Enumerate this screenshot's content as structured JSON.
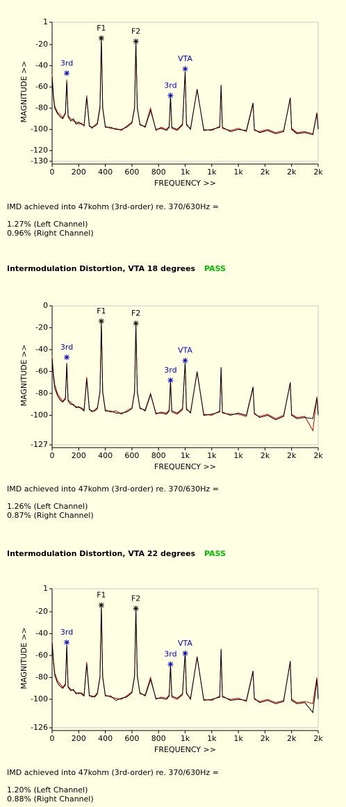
{
  "chart_data": [
    {
      "type": "line",
      "xlabel": "FREQUENCY >>",
      "ylabel": "MAGNITUDE >>",
      "xlim": [
        0,
        2000
      ],
      "ylim": [
        -130,
        1
      ],
      "xticks": [
        0,
        200,
        400,
        600,
        800,
        {
          "value": 1000,
          "label": "1k"
        },
        {
          "value": 1200,
          "label": "1k"
        },
        {
          "value": 1400,
          "label": "1k"
        },
        {
          "value": 1600,
          "label": "2k"
        },
        {
          "value": 1800,
          "label": "2k"
        },
        {
          "value": 2000,
          "label": "2k"
        }
      ],
      "yticks": [
        1,
        -20,
        -40,
        -60,
        -80,
        -100,
        -120,
        -130
      ],
      "x": [
        0,
        10,
        20,
        40,
        60,
        80,
        100,
        110,
        120,
        140,
        160,
        180,
        200,
        220,
        240,
        260,
        280,
        300,
        320,
        340,
        360,
        370,
        380,
        400,
        440,
        480,
        520,
        560,
        600,
        620,
        630,
        640,
        660,
        700,
        740,
        780,
        820,
        860,
        880,
        890,
        900,
        940,
        980,
        1000,
        1010,
        1040,
        1090,
        1140,
        1200,
        1260,
        1270,
        1280,
        1340,
        1400,
        1460,
        1510,
        1520,
        1560,
        1620,
        1680,
        1740,
        1790,
        1800,
        1840,
        1900,
        1960,
        1990,
        2000
      ],
      "series": [
        {
          "color": "#e00000",
          "values": [
            -48,
            -68,
            -78,
            -84,
            -86,
            -89,
            -84,
            -53,
            -87,
            -90,
            -92,
            -93,
            -95,
            -94,
            -97,
            -68,
            -96,
            -99,
            -96,
            -94,
            -78,
            -15,
            -79,
            -97,
            -99,
            -99,
            -101,
            -97,
            -93,
            -79,
            -18,
            -79,
            -96,
            -97,
            -80,
            -101,
            -98,
            -100,
            -97,
            -69,
            -99,
            -101,
            -96,
            -46,
            -96,
            -99,
            -63,
            -100,
            -101,
            -97,
            -59,
            -99,
            -101,
            -99,
            -102,
            -76,
            -101,
            -102,
            -100,
            -103,
            -101,
            -71,
            -99,
            -103,
            -102,
            -104,
            -84,
            -99
          ]
        },
        {
          "color": "#000000",
          "values": [
            -50,
            -70,
            -80,
            -85,
            -88,
            -90,
            -85,
            -55,
            -88,
            -92,
            -90,
            -95,
            -93,
            -95,
            -96,
            -70,
            -97,
            -98,
            -97,
            -95,
            -80,
            -14,
            -80,
            -98,
            -98,
            -100,
            -100,
            -98,
            -94,
            -80,
            -17,
            -80,
            -95,
            -98,
            -82,
            -100,
            -99,
            -101,
            -98,
            -68,
            -98,
            -100,
            -95,
            -45,
            -95,
            -100,
            -62,
            -101,
            -100,
            -98,
            -58,
            -98,
            -102,
            -100,
            -101,
            -75,
            -100,
            -103,
            -101,
            -104,
            -102,
            -70,
            -100,
            -104,
            -103,
            -105,
            -85,
            -100
          ]
        }
      ],
      "annotations": [
        {
          "label": "F1",
          "x": 370,
          "y": -14,
          "color": "#000000"
        },
        {
          "label": "F2",
          "x": 630,
          "y": -17,
          "color": "#000000"
        },
        {
          "label": "3rd",
          "x": 110,
          "y": -47,
          "color": "#0000cc"
        },
        {
          "label": "3rd",
          "x": 890,
          "y": -68,
          "color": "#0000cc"
        },
        {
          "label": "VTA",
          "x": 1000,
          "y": -43,
          "color": "#0000cc"
        }
      ]
    },
    {
      "type": "line",
      "xlabel": "FREQUENCY >>",
      "ylabel": "MAGNITUDE >>",
      "xlim": [
        0,
        2000
      ],
      "ylim": [
        -127,
        0
      ],
      "xticks": [
        0,
        200,
        400,
        600,
        800,
        {
          "value": 1000,
          "label": "1k"
        },
        {
          "value": 1200,
          "label": "1k"
        },
        {
          "value": 1400,
          "label": "1k"
        },
        {
          "value": 1600,
          "label": "2k"
        },
        {
          "value": 1800,
          "label": "2k"
        },
        {
          "value": 2000,
          "label": "2k"
        }
      ],
      "yticks": [
        0,
        -20,
        -40,
        -60,
        -80,
        -100,
        -127
      ],
      "x": [
        0,
        10,
        20,
        40,
        60,
        80,
        100,
        110,
        120,
        140,
        160,
        180,
        200,
        220,
        240,
        260,
        280,
        300,
        320,
        340,
        360,
        370,
        380,
        400,
        440,
        480,
        520,
        560,
        600,
        620,
        630,
        640,
        660,
        700,
        740,
        780,
        820,
        860,
        880,
        890,
        900,
        940,
        980,
        1000,
        1010,
        1040,
        1090,
        1140,
        1200,
        1260,
        1270,
        1280,
        1340,
        1400,
        1460,
        1510,
        1520,
        1560,
        1620,
        1680,
        1740,
        1790,
        1800,
        1840,
        1900,
        1960,
        1990,
        2000
      ],
      "series": [
        {
          "color": "#e00000",
          "values": [
            -46,
            -62,
            -72,
            -80,
            -84,
            -87,
            -84,
            -52,
            -86,
            -88,
            -91,
            -92,
            -93,
            -93,
            -95,
            -65,
            -94,
            -97,
            -95,
            -93,
            -78,
            -15,
            -78,
            -95,
            -97,
            -96,
            -99,
            -96,
            -93,
            -78,
            -18,
            -78,
            -94,
            -95,
            -80,
            -99,
            -97,
            -98,
            -95,
            -69,
            -97,
            -99,
            -95,
            -52,
            -95,
            -97,
            -61,
            -99,
            -100,
            -96,
            -57,
            -98,
            -99,
            -99,
            -101,
            -75,
            -99,
            -101,
            -99,
            -103,
            -100,
            -71,
            -99,
            -102,
            -101,
            -114,
            -83,
            -99
          ]
        },
        {
          "color": "#000000",
          "values": [
            -48,
            -65,
            -75,
            -82,
            -86,
            -88,
            -85,
            -53,
            -87,
            -90,
            -90,
            -93,
            -92,
            -94,
            -96,
            -67,
            -95,
            -96,
            -96,
            -94,
            -79,
            -14,
            -79,
            -96,
            -96,
            -98,
            -98,
            -97,
            -94,
            -79,
            -16,
            -79,
            -93,
            -96,
            -81,
            -98,
            -98,
            -99,
            -96,
            -68,
            -96,
            -98,
            -94,
            -51,
            -94,
            -98,
            -60,
            -100,
            -99,
            -97,
            -56,
            -97,
            -100,
            -98,
            -100,
            -74,
            -98,
            -102,
            -100,
            -104,
            -101,
            -70,
            -100,
            -103,
            -102,
            -103,
            -84,
            -100
          ]
        }
      ],
      "annotations": [
        {
          "label": "F1",
          "x": 370,
          "y": -14,
          "color": "#000000"
        },
        {
          "label": "F2",
          "x": 630,
          "y": -16,
          "color": "#000000"
        },
        {
          "label": "3rd",
          "x": 110,
          "y": -47,
          "color": "#0000cc"
        },
        {
          "label": "3rd",
          "x": 890,
          "y": -68,
          "color": "#0000cc"
        },
        {
          "label": "VTA",
          "x": 1000,
          "y": -50,
          "color": "#0000cc"
        }
      ]
    },
    {
      "type": "line",
      "xlabel": "FREQUENCY >>",
      "ylabel": "MAGNITUDE >>",
      "xlim": [
        0,
        2000
      ],
      "ylim": [
        -126,
        1
      ],
      "xticks": [
        0,
        200,
        400,
        600,
        800,
        {
          "value": 1000,
          "label": "1k"
        },
        {
          "value": 1200,
          "label": "1k"
        },
        {
          "value": 1400,
          "label": "1k"
        },
        {
          "value": 1600,
          "label": "2k"
        },
        {
          "value": 1800,
          "label": "2k"
        },
        {
          "value": 2000,
          "label": "2k"
        }
      ],
      "yticks": [
        1,
        -20,
        -40,
        -60,
        -80,
        -100,
        -126
      ],
      "x": [
        0,
        10,
        20,
        40,
        60,
        80,
        100,
        110,
        120,
        140,
        160,
        180,
        200,
        220,
        240,
        260,
        280,
        300,
        320,
        340,
        360,
        370,
        380,
        400,
        440,
        480,
        520,
        560,
        600,
        620,
        630,
        640,
        660,
        700,
        740,
        780,
        820,
        860,
        880,
        890,
        900,
        940,
        980,
        1000,
        1010,
        1040,
        1090,
        1140,
        1200,
        1260,
        1270,
        1280,
        1340,
        1400,
        1460,
        1510,
        1520,
        1560,
        1620,
        1680,
        1740,
        1790,
        1800,
        1840,
        1900,
        1960,
        1990,
        2000
      ],
      "series": [
        {
          "color": "#e00000",
          "values": [
            -46,
            -64,
            -76,
            -83,
            -86,
            -89,
            -86,
            -50,
            -88,
            -91,
            -92,
            -94,
            -95,
            -94,
            -96,
            -66,
            -96,
            -98,
            -97,
            -94,
            -79,
            -15,
            -79,
            -96,
            -98,
            -99,
            -100,
            -97,
            -93,
            -78,
            -18,
            -78,
            -95,
            -96,
            -80,
            -100,
            -98,
            -99,
            -96,
            -69,
            -98,
            -100,
            -96,
            -58,
            -95,
            -99,
            -62,
            -100,
            -101,
            -97,
            -55,
            -98,
            -100,
            -99,
            -102,
            -75,
            -100,
            -102,
            -100,
            -103,
            -101,
            -66,
            -100,
            -103,
            -102,
            -104,
            -80,
            -99
          ]
        },
        {
          "color": "#000000",
          "values": [
            -48,
            -66,
            -78,
            -85,
            -88,
            -90,
            -87,
            -51,
            -89,
            -92,
            -91,
            -95,
            -94,
            -95,
            -97,
            -68,
            -97,
            -97,
            -98,
            -95,
            -80,
            -14,
            -80,
            -97,
            -97,
            -101,
            -99,
            -98,
            -94,
            -79,
            -17,
            -79,
            -94,
            -97,
            -82,
            -99,
            -99,
            -100,
            -97,
            -68,
            -97,
            -99,
            -95,
            -57,
            -94,
            -100,
            -61,
            -101,
            -100,
            -98,
            -54,
            -97,
            -101,
            -100,
            -101,
            -74,
            -99,
            -103,
            -101,
            -104,
            -102,
            -65,
            -101,
            -104,
            -103,
            -112,
            -82,
            -100
          ]
        }
      ],
      "annotations": [
        {
          "label": "F1",
          "x": 370,
          "y": -14,
          "color": "#000000"
        },
        {
          "label": "F2",
          "x": 630,
          "y": -17,
          "color": "#000000"
        },
        {
          "label": "3rd",
          "x": 110,
          "y": -48,
          "color": "#0000cc"
        },
        {
          "label": "3rd",
          "x": 890,
          "y": -68,
          "color": "#0000cc"
        },
        {
          "label": "VTA",
          "x": 1000,
          "y": -58,
          "color": "#0000cc"
        }
      ]
    }
  ],
  "reports": [
    {
      "imd": "IMD achieved into 47kohm (3rd-order) re. 370/630Hz =",
      "left": "1.27% (Left Channel)",
      "right": "0.96% (Right Channel)"
    },
    {
      "imd": "IMD achieved into 47kohm (3rd-order) re. 370/630Hz =",
      "left": "1.26% (Left Channel)",
      "right": "0.87% (Right Channel)"
    },
    {
      "imd": "IMD achieved into 47kohm (3rd-order) re. 370/630Hz =",
      "left": "1.20% (Left Channel)",
      "right": "0.88% (Right Channel)"
    }
  ],
  "headings": [
    {
      "text": "Intermodulation Distortion, VTA 18 degrees",
      "status": "PASS"
    },
    {
      "text": "Intermodulation Distortion, VTA 22 degrees",
      "status": "PASS"
    }
  ]
}
